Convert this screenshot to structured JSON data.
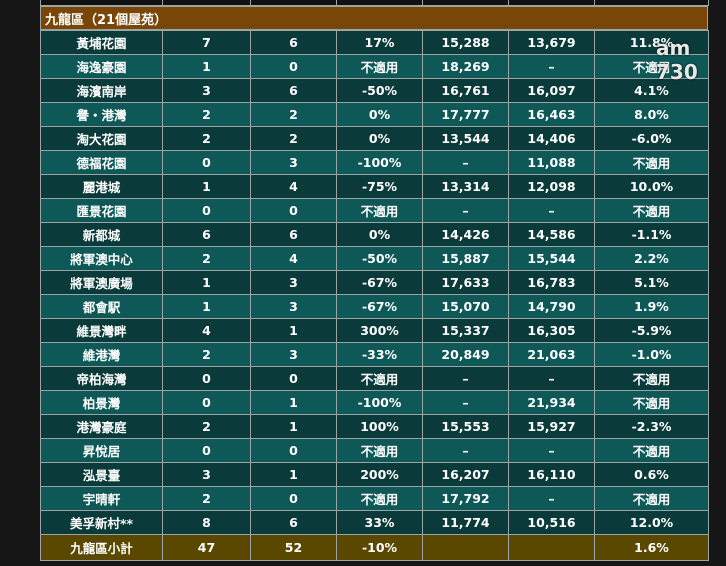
{
  "header": {
    "title": "九龍區（21個屋苑）"
  },
  "table": {
    "rows": [
      [
        "黃埔花園",
        "7",
        "6",
        "17%",
        "15,288",
        "13,679",
        "11.8%"
      ],
      [
        "海逸豪園",
        "1",
        "0",
        "不適用",
        "18,269",
        "–",
        "不適用"
      ],
      [
        "海濱南岸",
        "3",
        "6",
        "-50%",
        "16,761",
        "16,097",
        "4.1%"
      ],
      [
        "譽・港灣",
        "2",
        "2",
        "0%",
        "17,777",
        "16,463",
        "8.0%"
      ],
      [
        "淘大花園",
        "2",
        "2",
        "0%",
        "13,544",
        "14,406",
        "-6.0%"
      ],
      [
        "德福花園",
        "0",
        "3",
        "-100%",
        "–",
        "11,088",
        "不適用"
      ],
      [
        "麗港城",
        "1",
        "4",
        "-75%",
        "13,314",
        "12,098",
        "10.0%"
      ],
      [
        "匯景花園",
        "0",
        "0",
        "不適用",
        "–",
        "–",
        "不適用"
      ],
      [
        "新都城",
        "6",
        "6",
        "0%",
        "14,426",
        "14,586",
        "-1.1%"
      ],
      [
        "將軍澳中心",
        "2",
        "4",
        "-50%",
        "15,887",
        "15,544",
        "2.2%"
      ],
      [
        "將軍澳廣場",
        "1",
        "3",
        "-67%",
        "17,633",
        "16,783",
        "5.1%"
      ],
      [
        "都會駅",
        "1",
        "3",
        "-67%",
        "15,070",
        "14,790",
        "1.9%"
      ],
      [
        "維景灣畔",
        "4",
        "1",
        "300%",
        "15,337",
        "16,305",
        "-5.9%"
      ],
      [
        "維港灣",
        "2",
        "3",
        "-33%",
        "20,849",
        "21,063",
        "-1.0%"
      ],
      [
        "帝柏海灣",
        "0",
        "0",
        "不適用",
        "–",
        "–",
        "不適用"
      ],
      [
        "柏景灣",
        "0",
        "1",
        "-100%",
        "–",
        "21,934",
        "不適用"
      ],
      [
        "港灣豪庭",
        "2",
        "1",
        "100%",
        "15,553",
        "15,927",
        "-2.3%"
      ],
      [
        "昇悅居",
        "0",
        "0",
        "不適用",
        "–",
        "–",
        "不適用"
      ],
      [
        "泓景臺",
        "3",
        "1",
        "200%",
        "16,207",
        "16,110",
        "0.6%"
      ],
      [
        "宇晴軒",
        "2",
        "0",
        "不適用",
        "17,792",
        "–",
        "不適用"
      ],
      [
        "美孚新村**",
        "8",
        "6",
        "33%",
        "11,774",
        "10,516",
        "12.0%"
      ]
    ],
    "subtotal": [
      "九龍區小計",
      "47",
      "52",
      "-10%",
      "",
      "",
      "1.6%"
    ]
  },
  "watermark": [
    "am",
    "730"
  ]
}
